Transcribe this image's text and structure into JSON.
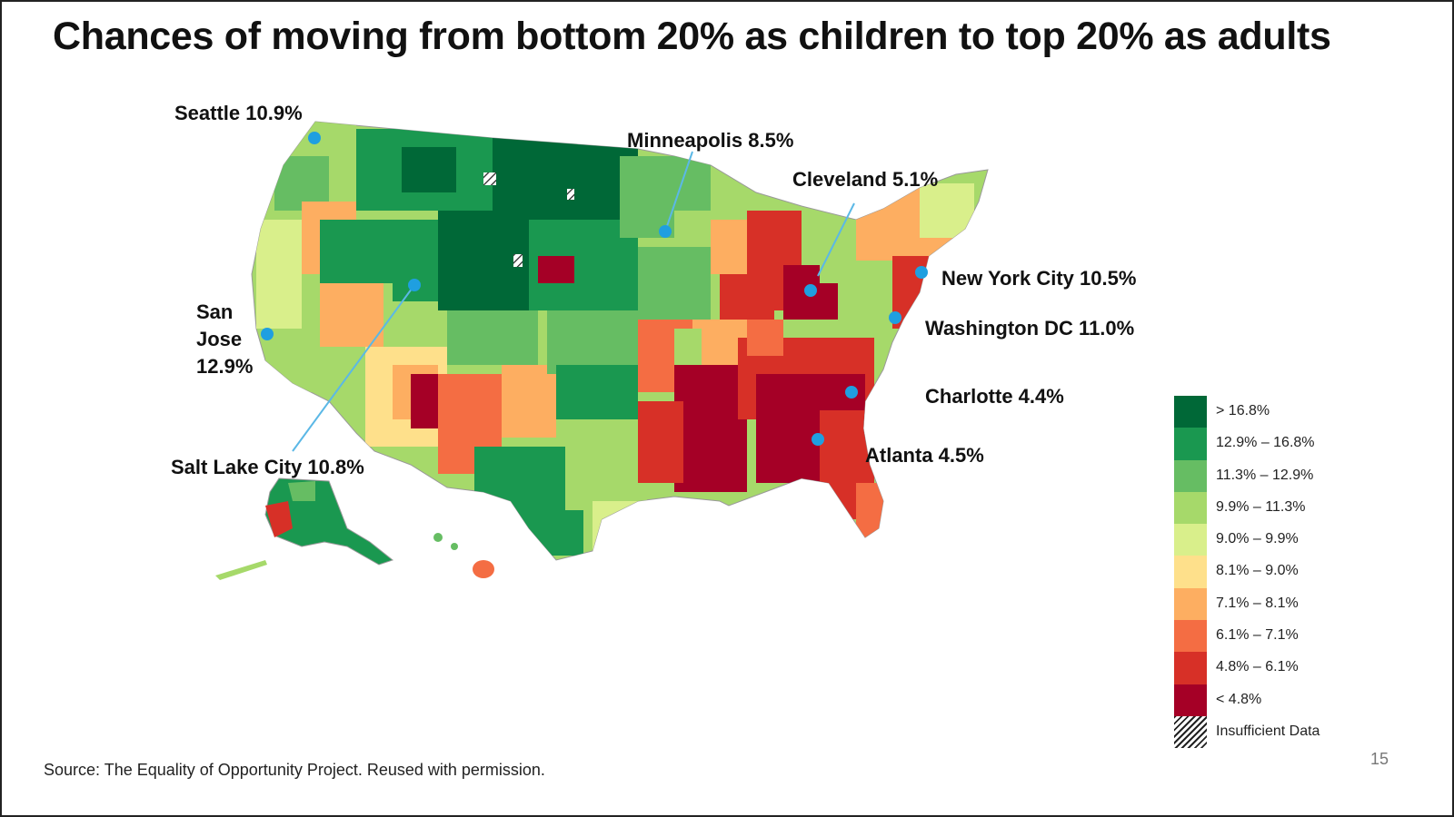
{
  "title": "Chances of moving from bottom 20% as children to top 20% as adults",
  "source": "Source: The Equality of Opportunity Project. Reused with permission.",
  "page_number": "15",
  "cities": [
    {
      "id": "seattle",
      "label": "Seattle 10.9%"
    },
    {
      "id": "minneapolis",
      "label": "Minneapolis 8.5%"
    },
    {
      "id": "cleveland",
      "label": "Cleveland 5.1%"
    },
    {
      "id": "new-york",
      "label": "New York City 10.5%"
    },
    {
      "id": "washington",
      "label": "Washington DC 11.0%"
    },
    {
      "id": "charlotte",
      "label": "Charlotte 4.4%"
    },
    {
      "id": "atlanta",
      "label": "Atlanta 4.5%"
    },
    {
      "id": "salt-lake",
      "label": "Salt Lake City 10.8%"
    },
    {
      "id": "san-jose",
      "lines": [
        "San",
        "Jose",
        "12.9%"
      ]
    }
  ],
  "legend": [
    {
      "label": "> 16.8%",
      "color": "#006837"
    },
    {
      "label": "12.9% – 16.8%",
      "color": "#1a9850"
    },
    {
      "label": "11.3% – 12.9%",
      "color": "#66bd63"
    },
    {
      "label": "9.9% – 11.3%",
      "color": "#a6d96a"
    },
    {
      "label": "9.0% – 9.9%",
      "color": "#d9ef8b"
    },
    {
      "label": "8.1% – 9.0%",
      "color": "#fee08b"
    },
    {
      "label": "7.1% – 8.1%",
      "color": "#fdae61"
    },
    {
      "label": "6.1% – 7.1%",
      "color": "#f46d43"
    },
    {
      "label": "4.8% – 6.1%",
      "color": "#d73027"
    },
    {
      "label": "< 4.8%",
      "color": "#a50026"
    },
    {
      "label": "Insufficient Data",
      "pattern": "hatch"
    }
  ],
  "marker_color": "#1f9fe0"
}
